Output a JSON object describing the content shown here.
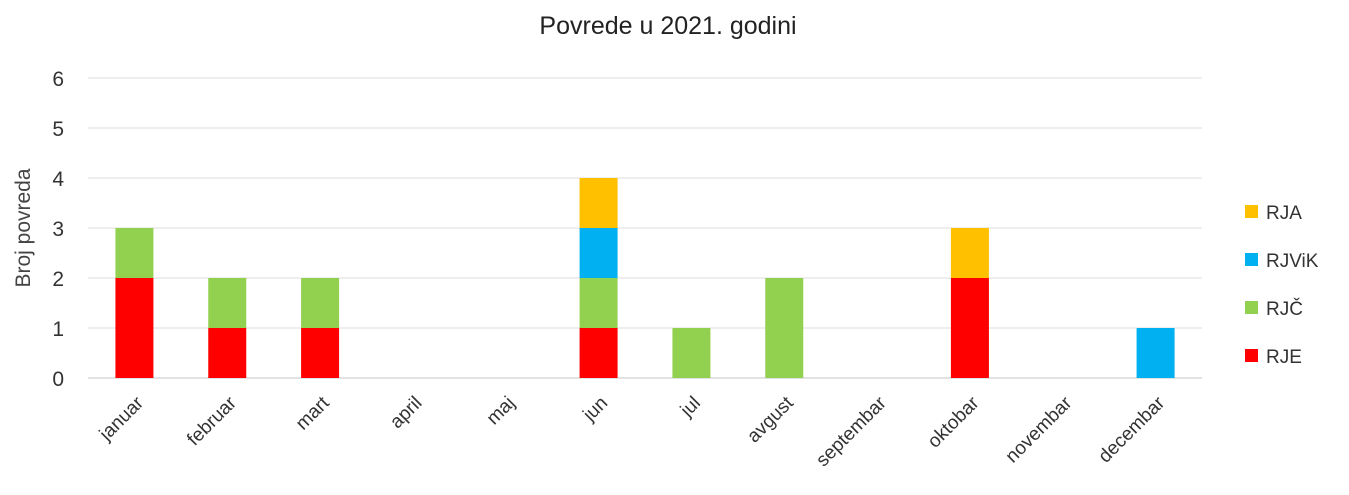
{
  "chart_data": {
    "type": "bar",
    "stacked": true,
    "title": "Povrede u 2021. godini",
    "xlabel": "",
    "ylabel": "Broj povreda",
    "ylim": [
      0,
      6
    ],
    "yticks": [
      0,
      1,
      2,
      3,
      4,
      5,
      6
    ],
    "grid": true,
    "legend_position": "right",
    "categories": [
      "januar",
      "februar",
      "mart",
      "april",
      "maj",
      "jun",
      "jul",
      "avgust",
      "septembar",
      "oktobar",
      "novembar",
      "decembar"
    ],
    "series": [
      {
        "name": "RJE",
        "color": "#ff0000",
        "values": [
          2,
          1,
          1,
          0,
          0,
          1,
          0,
          0,
          0,
          2,
          0,
          0
        ]
      },
      {
        "name": "RJČ",
        "color": "#92d050",
        "values": [
          1,
          1,
          1,
          0,
          0,
          1,
          1,
          2,
          0,
          0,
          0,
          0
        ]
      },
      {
        "name": "RJViK",
        "color": "#00b0f0",
        "values": [
          0,
          0,
          0,
          0,
          0,
          1,
          0,
          0,
          0,
          0,
          0,
          1
        ]
      },
      {
        "name": "RJA",
        "color": "#ffc000",
        "values": [
          0,
          0,
          0,
          0,
          0,
          1,
          0,
          0,
          0,
          1,
          0,
          0
        ]
      }
    ],
    "legend_order": [
      "RJA",
      "RJViK",
      "RJČ",
      "RJE"
    ]
  }
}
